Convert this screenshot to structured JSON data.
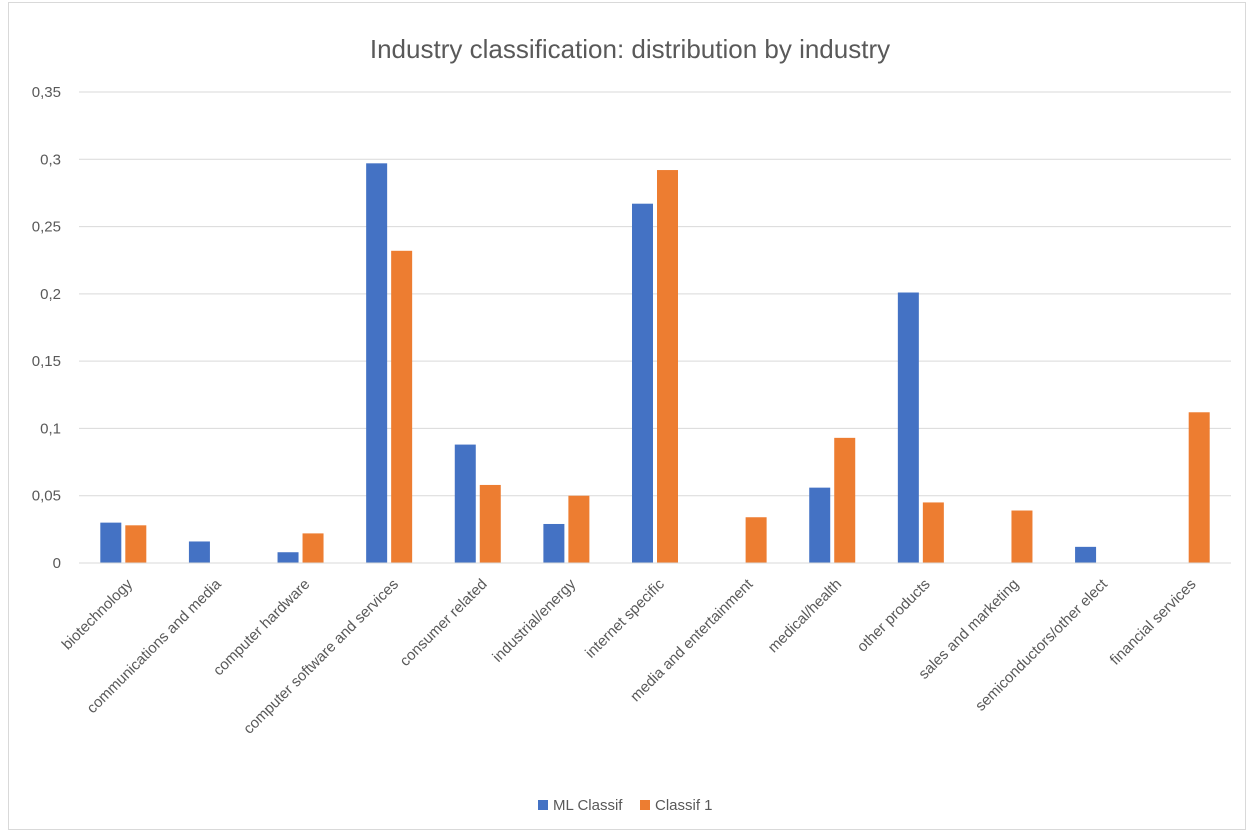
{
  "chart_data": {
    "type": "bar",
    "title": "Industry classification: distribution by industry",
    "categories": [
      "biotechnology",
      "communications and media",
      "computer hardware",
      "computer software and services",
      "consumer related",
      "industrial/energy",
      "internet specific",
      "media and entertainment",
      "medical/health",
      "other products",
      "sales and marketing",
      "semiconductors/other elect",
      "financial services"
    ],
    "series": [
      {
        "name": "ML Classif",
        "color": "#4472c4",
        "values": [
          0.03,
          0.016,
          0.008,
          0.297,
          0.088,
          0.029,
          0.267,
          0,
          0.056,
          0.201,
          0,
          0.012,
          0
        ]
      },
      {
        "name": "Classif 1",
        "color": "#ed7d31",
        "values": [
          0.028,
          0,
          0.022,
          0.232,
          0.058,
          0.05,
          0.292,
          0.034,
          0.093,
          0.045,
          0.039,
          0,
          0.112
        ]
      }
    ],
    "ylim": [
      0,
      0.35
    ],
    "yticks": [
      "0",
      "0,05",
      "0,1",
      "0,15",
      "0,2",
      "0,25",
      "0,3",
      "0,35"
    ],
    "ytick_values": [
      0,
      0.05,
      0.1,
      0.15,
      0.2,
      0.25,
      0.3,
      0.35
    ],
    "grid": true,
    "legend_position": "bottom"
  }
}
